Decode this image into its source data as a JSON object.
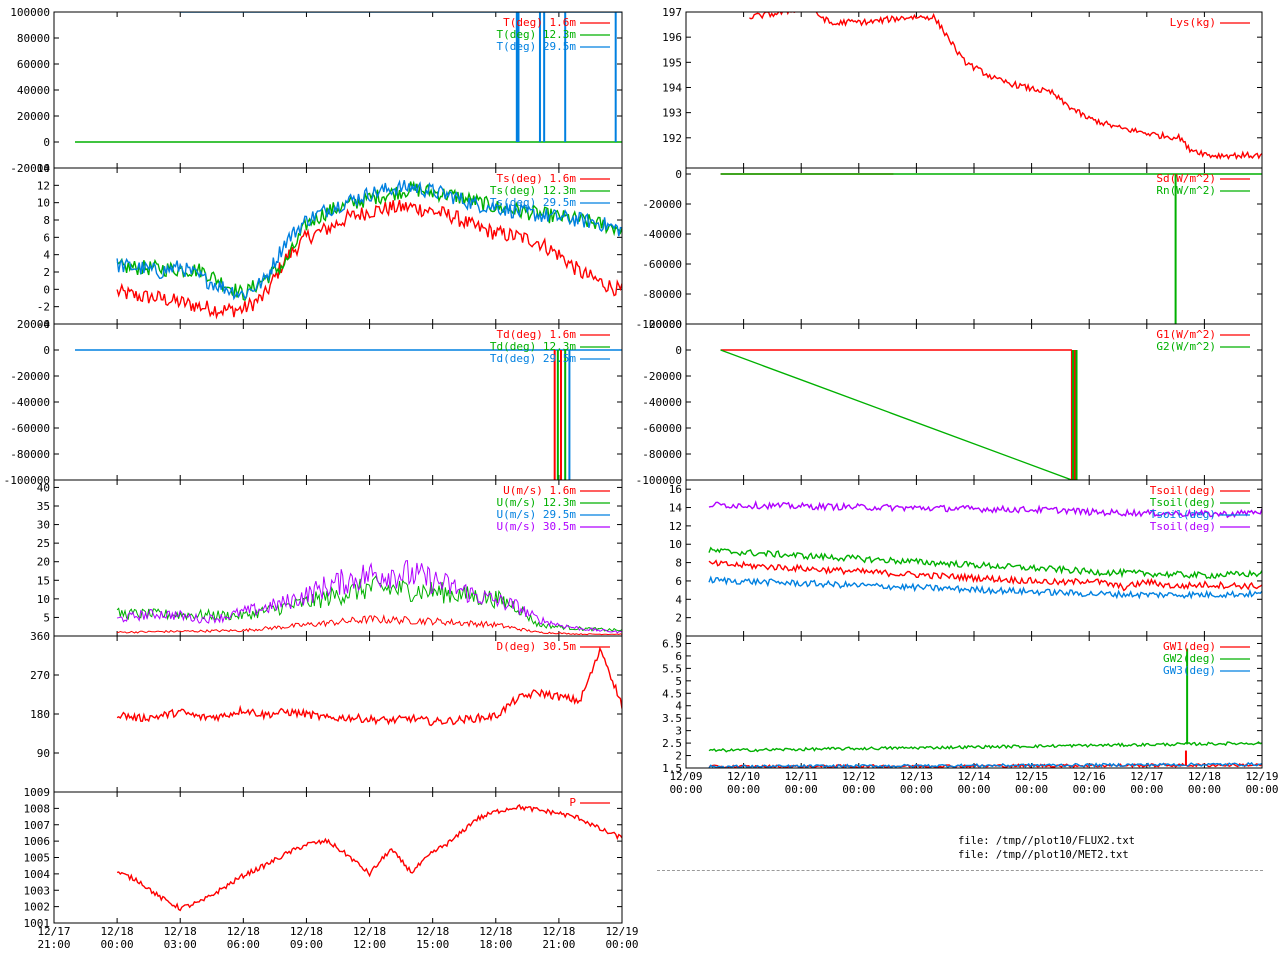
{
  "files": [
    "file: /tmp//plot10/FLUX2.txt",
    "file: /tmp//plot10/MET2.txt"
  ],
  "colors": {
    "red": "#ff0000",
    "green": "#00b000",
    "blue": "#0080e0",
    "purple": "#b000ff"
  },
  "chart_data": [
    {
      "type": "line",
      "ylim": [
        -20000,
        100000
      ],
      "yticks": [
        -20000,
        0,
        20000,
        40000,
        60000,
        80000,
        100000
      ],
      "xlim": [
        -3,
        24
      ],
      "series": [
        {
          "name": "T(deg)  1.6m",
          "color": "red"
        },
        {
          "name": "T(deg) 12.3m",
          "color": "green",
          "x": [
            -2,
            24
          ],
          "y": [
            0,
            0
          ]
        },
        {
          "name": "T(deg) 29.5m",
          "color": "blue",
          "x": [
            3,
            24
          ],
          "y": [
            100000,
            100000
          ]
        }
      ],
      "spikes": [
        {
          "color": "blue",
          "x": [
            19.0,
            19.08,
            20.1,
            20.3,
            21.3,
            23.7
          ],
          "from": 100000,
          "to": 0
        }
      ]
    },
    {
      "type": "line",
      "ylim": [
        -4,
        14
      ],
      "yticks": [
        -4,
        -2,
        0,
        2,
        4,
        6,
        8,
        10,
        12,
        14
      ],
      "xlim": [
        -3,
        24
      ],
      "series": [
        {
          "name": "Ts(deg)  1.6m",
          "color": "red",
          "x": [
            0,
            1,
            2,
            3,
            4,
            5,
            6,
            7,
            8,
            9,
            10,
            11,
            12,
            13,
            14,
            15,
            16,
            17,
            18,
            19,
            20,
            21,
            22,
            23,
            24
          ],
          "y": [
            -0.3,
            -0.8,
            -1.0,
            -1.5,
            -2.0,
            -2.4,
            -2.3,
            -0.8,
            3.5,
            6.0,
            7.0,
            8.3,
            9.0,
            9.4,
            9.5,
            9.0,
            8.4,
            7.2,
            6.5,
            6.1,
            5.5,
            4.0,
            2.0,
            0.8,
            -0.2
          ]
        },
        {
          "name": "Ts(deg) 12.3m",
          "color": "green",
          "x": [
            0,
            4,
            6,
            8,
            9,
            10,
            12,
            14,
            16,
            18,
            20,
            22,
            24
          ],
          "y": [
            2.6,
            2.2,
            -0.6,
            3.0,
            7.5,
            9.0,
            10.5,
            11.6,
            10.8,
            9.5,
            8.7,
            8.0,
            7.0
          ]
        },
        {
          "name": "Ts(deg) 29.5m",
          "color": "blue",
          "x": [
            0,
            1,
            2,
            3,
            4,
            5,
            6,
            7,
            8,
            9,
            10,
            11,
            12,
            13,
            14,
            15,
            16,
            17,
            18,
            19,
            20,
            21,
            22,
            23,
            24
          ],
          "y": [
            2.8,
            2.5,
            2.0,
            2.6,
            1.3,
            0.3,
            -0.6,
            1.0,
            5.5,
            8.0,
            9.2,
            10.2,
            11.0,
            11.6,
            11.8,
            11.3,
            10.7,
            9.8,
            9.5,
            9.0,
            8.6,
            8.3,
            8.0,
            7.6,
            6.8
          ]
        }
      ]
    },
    {
      "type": "line",
      "ylim": [
        -100000,
        20000
      ],
      "yticks": [
        -100000,
        -80000,
        -60000,
        -40000,
        -20000,
        0,
        20000
      ],
      "xlim": [
        -3,
        24
      ],
      "series": [
        {
          "name": "Td(deg)  1.6m",
          "color": "red"
        },
        {
          "name": "Td(deg) 12.3m",
          "color": "green"
        },
        {
          "name": "Td(deg) 29.5m",
          "color": "blue",
          "x": [
            -2,
            24
          ],
          "y": [
            0,
            0
          ]
        }
      ],
      "spikes": [
        {
          "color": "red",
          "x": [
            20.8,
            21.1
          ],
          "from": 0,
          "to": -100000
        },
        {
          "color": "green",
          "x": [
            20.95,
            21.3
          ],
          "from": 0,
          "to": -100000
        },
        {
          "color": "blue",
          "x": [
            21.5
          ],
          "from": 0,
          "to": -100000
        }
      ]
    },
    {
      "type": "line",
      "ylim": [
        0,
        42
      ],
      "yticks": [
        5,
        10,
        15,
        20,
        25,
        30,
        35,
        40
      ],
      "xlim": [
        -3,
        24
      ],
      "series": [
        {
          "name": "U(m/s)  1.6m",
          "color": "red",
          "x": [
            0,
            6,
            9,
            12,
            15,
            18,
            19,
            20,
            22,
            24
          ],
          "y": [
            1.0,
            1.5,
            3.0,
            4.5,
            4.0,
            3.0,
            2.0,
            1.0,
            0.5,
            0.5
          ]
        },
        {
          "name": "U(m/s) 12.3m",
          "color": "green",
          "x": [
            0,
            6,
            9,
            12,
            15,
            18,
            19,
            20,
            22,
            24
          ],
          "y": [
            6.0,
            5.5,
            9.0,
            13.0,
            12.0,
            10.0,
            8.0,
            3.0,
            2.0,
            1.5
          ]
        },
        {
          "name": "U(m/s) 29.5m",
          "color": "blue"
        },
        {
          "name": "U(m/s) 30.5m",
          "color": "purple",
          "x": [
            0,
            1,
            2,
            3,
            4,
            5,
            6,
            7,
            8,
            9,
            10,
            11,
            12,
            13,
            14,
            15,
            16,
            17,
            18,
            19,
            20,
            21,
            22,
            23,
            24
          ],
          "y": [
            4.5,
            5.5,
            6.0,
            5.5,
            4.5,
            5.0,
            6.5,
            7.5,
            9.0,
            11.0,
            13.5,
            15.0,
            16.5,
            17.0,
            16.5,
            15.0,
            13.0,
            11.0,
            9.5,
            8.0,
            4.5,
            3.0,
            2.0,
            1.5,
            1.0
          ]
        }
      ]
    },
    {
      "type": "line",
      "ylim": [
        0,
        360
      ],
      "yticks": [
        90,
        180,
        270,
        360
      ],
      "xlim": [
        -3,
        24
      ],
      "series": [
        {
          "name": "D(deg)  30.5m",
          "color": "red",
          "x": [
            0,
            1,
            2,
            3,
            4,
            5,
            6,
            7,
            8,
            9,
            10,
            11,
            12,
            13,
            14,
            15,
            16,
            17,
            18,
            19,
            20,
            21,
            22,
            23,
            24
          ],
          "y": [
            180,
            170,
            175,
            185,
            172,
            175,
            190,
            178,
            185,
            180,
            170,
            172,
            168,
            165,
            170,
            162,
            165,
            170,
            175,
            215,
            230,
            220,
            210,
            330,
            200
          ]
        }
      ]
    },
    {
      "type": "line",
      "ylim": [
        1001,
        1009
      ],
      "yticks": [
        1001,
        1002,
        1003,
        1004,
        1005,
        1006,
        1007,
        1008,
        1009
      ],
      "xlim": [
        -3,
        24
      ],
      "xticks": [
        -3,
        0,
        3,
        6,
        9,
        12,
        15,
        18,
        21,
        24
      ],
      "xticklabels": [
        [
          "12/17",
          "21:00"
        ],
        [
          "12/18",
          "00:00"
        ],
        [
          "12/18",
          "03:00"
        ],
        [
          "12/18",
          "06:00"
        ],
        [
          "12/18",
          "09:00"
        ],
        [
          "12/18",
          "12:00"
        ],
        [
          "12/18",
          "15:00"
        ],
        [
          "12/18",
          "18:00"
        ],
        [
          "12/18",
          "21:00"
        ],
        [
          "12/19",
          "00:00"
        ]
      ],
      "series": [
        {
          "name": "P",
          "color": "red",
          "x": [
            0,
            1,
            2,
            3,
            4,
            5,
            6,
            7,
            8,
            9,
            10,
            11,
            12,
            13,
            14,
            15,
            16,
            17,
            18,
            19,
            20,
            21,
            22,
            23,
            24
          ],
          "y": [
            1004.1,
            1003.6,
            1002.6,
            1001.9,
            1002.3,
            1003.1,
            1003.9,
            1004.5,
            1005.2,
            1005.8,
            1006.0,
            1005.1,
            1004.0,
            1005.5,
            1004.1,
            1005.3,
            1006.1,
            1007.3,
            1007.8,
            1008.1,
            1007.9,
            1007.7,
            1007.4,
            1006.7,
            1006.2
          ]
        }
      ]
    },
    {
      "type": "line",
      "ylim": [
        190.8,
        197
      ],
      "yticks": [
        192,
        193,
        194,
        195,
        196,
        197
      ],
      "xlim": [
        0,
        10
      ],
      "series": [
        {
          "name": "Lys(kg)",
          "color": "red",
          "x": [
            1.1,
            1.6,
            2.1,
            2.55,
            2.75,
            3.2,
            3.5,
            3.9,
            4.3,
            4.55,
            4.8,
            5.0,
            5.4,
            5.9,
            6.35,
            6.55,
            6.95,
            7.5,
            8.2,
            8.6,
            8.7,
            9.1,
            10.0
          ],
          "y": [
            196.8,
            196.95,
            197.2,
            196.5,
            196.6,
            196.6,
            196.7,
            196.8,
            196.8,
            196.0,
            195.1,
            194.8,
            194.3,
            194.0,
            193.8,
            193.4,
            192.8,
            192.4,
            192.1,
            192.0,
            191.6,
            191.3,
            191.3
          ]
        }
      ]
    },
    {
      "type": "line",
      "ylim": [
        -100000,
        4000
      ],
      "yticks": [
        -100000,
        -80000,
        -60000,
        -40000,
        -20000,
        0
      ],
      "xlim": [
        0,
        10
      ],
      "series": [
        {
          "name": "Sd(W/m^2)",
          "color": "red",
          "x": [
            0.6,
            3.6
          ],
          "y": [
            0,
            0
          ]
        },
        {
          "name": "Rn(W/m^2)",
          "color": "green",
          "x": [
            0.6,
            10
          ],
          "y": [
            0,
            0
          ]
        }
      ],
      "spikes": [
        {
          "color": "green",
          "x": [
            8.5
          ],
          "from": 0,
          "to": -100000
        }
      ]
    },
    {
      "type": "line",
      "ylim": [
        -100000,
        20000
      ],
      "yticks": [
        -100000,
        -80000,
        -60000,
        -40000,
        -20000,
        0,
        20000
      ],
      "xlim": [
        0,
        10
      ],
      "series": [
        {
          "name": "G1(W/m^2)",
          "color": "red",
          "x": [
            0.6,
            6.7
          ],
          "y": [
            0,
            0
          ]
        },
        {
          "name": "G2(W/m^2)",
          "color": "green",
          "x": [
            0.6,
            6.7
          ],
          "y": [
            0,
            -100000
          ]
        }
      ],
      "spikes": [
        {
          "color": "red",
          "x": [
            6.7,
            6.75
          ],
          "from": 0,
          "to": -100000
        },
        {
          "color": "green",
          "x": [
            6.72,
            6.78
          ],
          "from": 0,
          "to": -100000
        }
      ]
    },
    {
      "type": "line",
      "ylim": [
        0,
        17
      ],
      "yticks": [
        0,
        2,
        4,
        6,
        8,
        10,
        12,
        14,
        16
      ],
      "xlim": [
        0,
        10
      ],
      "series": [
        {
          "name": "Tsoil(deg)",
          "color": "red",
          "x": [
            0.4,
            6.6,
            7.0,
            7.6,
            8.0,
            8.5,
            9.0,
            10.0
          ],
          "y": [
            7.9,
            5.8,
            6.1,
            5.3,
            5.9,
            5.4,
            5.6,
            5.4
          ]
        },
        {
          "name": "Tsoil(deg)",
          "color": "green",
          "x": [
            0.4,
            6.6,
            7.0,
            8.0,
            9.0,
            10.0
          ],
          "y": [
            9.3,
            7.2,
            7.0,
            6.8,
            6.6,
            6.8
          ]
        },
        {
          "name": "Tsoil(deg)",
          "color": "blue",
          "x": [
            0.4,
            6.6,
            7.0,
            8.0,
            9.0,
            10.0
          ],
          "y": [
            6.1,
            4.7,
            4.6,
            4.5,
            4.5,
            4.6
          ]
        },
        {
          "name": "Tsoil(deg)",
          "color": "purple",
          "x": [
            0.4,
            6.6,
            7.0,
            8.0,
            9.0,
            9.5,
            10.0
          ],
          "y": [
            14.3,
            13.7,
            13.5,
            13.4,
            13.3,
            13.3,
            13.6
          ]
        }
      ]
    },
    {
      "type": "line",
      "ylim": [
        1.5,
        6.8
      ],
      "yticks": [
        1.5,
        2,
        2.5,
        3,
        3.5,
        4,
        4.5,
        5,
        5.5,
        6,
        6.5
      ],
      "xlim": [
        0,
        10
      ],
      "xticks": [
        0,
        1,
        2,
        3,
        4,
        5,
        6,
        7,
        8,
        9,
        10
      ],
      "xticklabels": [
        [
          "12/09",
          "00:00"
        ],
        [
          "12/10",
          "00:00"
        ],
        [
          "12/11",
          "00:00"
        ],
        [
          "12/12",
          "00:00"
        ],
        [
          "12/13",
          "00:00"
        ],
        [
          "12/14",
          "00:00"
        ],
        [
          "12/15",
          "00:00"
        ],
        [
          "12/16",
          "00:00"
        ],
        [
          "12/17",
          "00:00"
        ],
        [
          "12/18",
          "00:00"
        ],
        [
          "12/19",
          "00:00"
        ]
      ],
      "series": [
        {
          "name": "GW1(deg)",
          "color": "red",
          "x": [
            0.4,
            10
          ],
          "y": [
            1.55,
            1.62
          ]
        },
        {
          "name": "GW2(deg)",
          "color": "green",
          "x": [
            0.4,
            10
          ],
          "y": [
            2.2,
            2.5
          ]
        },
        {
          "name": "GW3(deg)",
          "color": "blue",
          "x": [
            0.4,
            10
          ],
          "y": [
            1.55,
            1.65
          ]
        }
      ],
      "spikes": [
        {
          "color": "green",
          "x": [
            8.7
          ],
          "from": 2.45,
          "to": 6.3
        },
        {
          "color": "red",
          "x": [
            8.68
          ],
          "from": 1.6,
          "to": 2.2
        }
      ]
    }
  ]
}
